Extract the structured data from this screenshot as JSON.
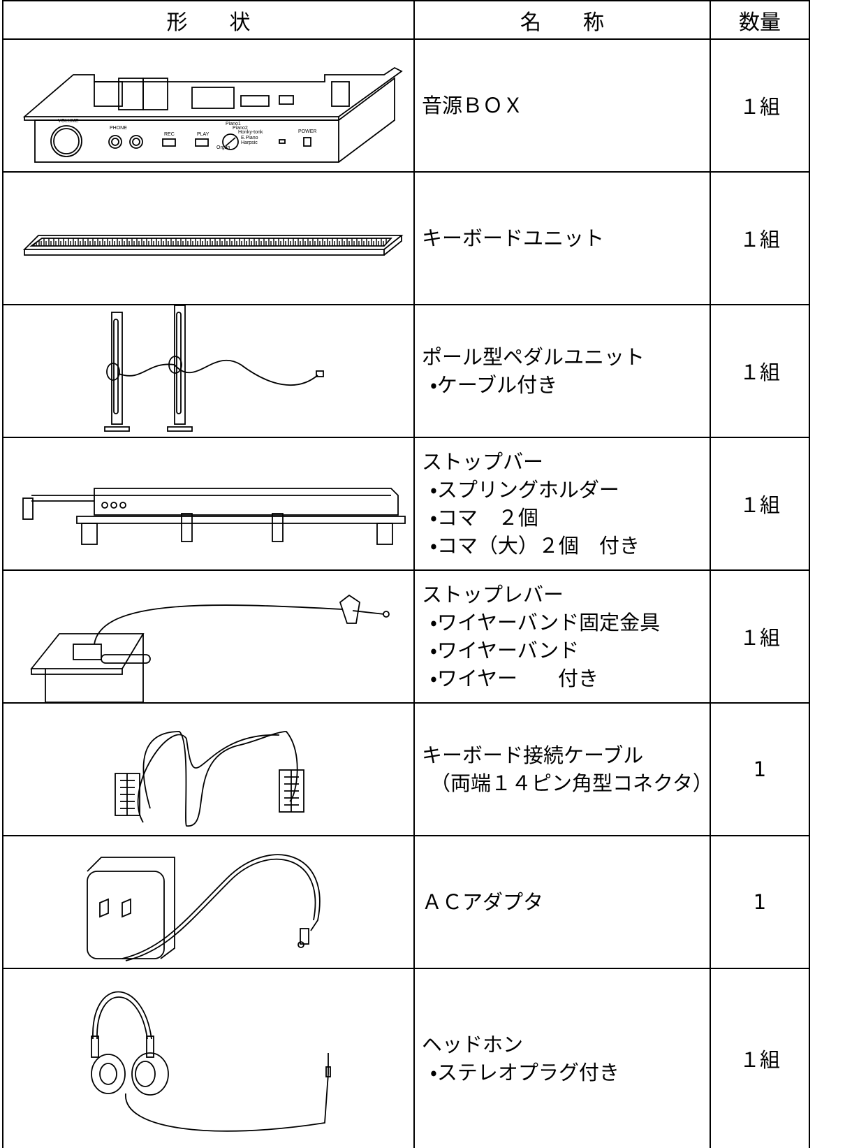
{
  "table": {
    "header": [
      "形　　状",
      "名　　称",
      "数量"
    ],
    "rows": [
      {
        "name": [
          "音源ＢＯＸ"
        ],
        "qty": "１組",
        "labels": [
          "VOLUME",
          "PHONE",
          "REC",
          "PLAY",
          "POWER",
          "Piano1",
          "Piano2",
          "Honky-tonk",
          "E.Piano",
          "Harpsic",
          "Organ"
        ]
      },
      {
        "name": [
          "キーボードユニット"
        ],
        "qty": "１組"
      },
      {
        "name": [
          "ポール型ペダルユニット",
          "・ケーブル付き"
        ],
        "qty": "１組"
      },
      {
        "name": [
          "ストップバー",
          "・スプリングホルダー",
          "・コマ　２個",
          "・コマ（大）２個　付き"
        ],
        "qty": "１組"
      },
      {
        "name": [
          "ストップレバー",
          "・ワイヤーバンド固定金具",
          "・ワイヤーバンド",
          "・ワイヤー　　付き"
        ],
        "qty": "１組"
      },
      {
        "name": [
          "キーボード接続ケーブル",
          "（両端１４ピン角型コネクタ）"
        ],
        "qty": "1"
      },
      {
        "name": [
          "ＡＣアダプタ"
        ],
        "qty": "1"
      },
      {
        "name": [
          "ヘッドホン",
          "・ステレオプラグ付き"
        ],
        "qty": "１組"
      }
    ]
  }
}
